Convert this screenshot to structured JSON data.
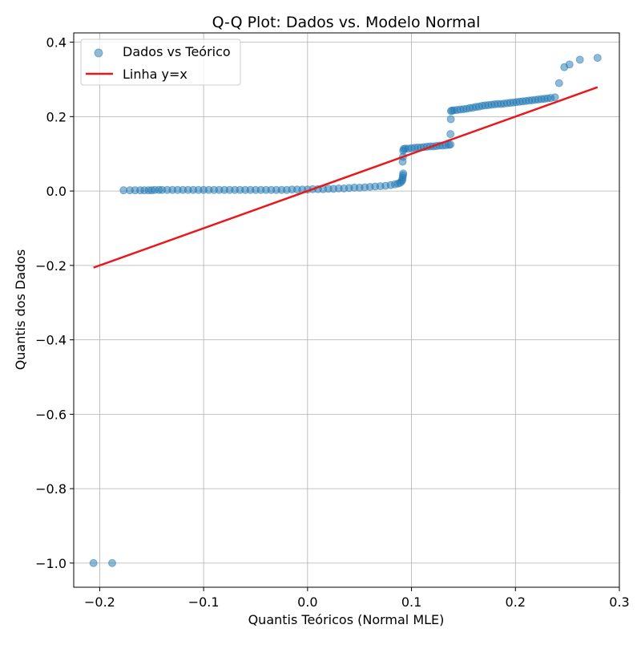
{
  "chart_data": {
    "type": "scatter",
    "title": "Q-Q Plot: Dados vs. Modelo Normal",
    "xlabel": "Quantis Teóricos (Normal MLE)",
    "ylabel": "Quantis dos Dados",
    "xlim": [
      -0.225,
      0.3
    ],
    "ylim": [
      -1.065,
      0.425
    ],
    "xticks": [
      -0.2,
      -0.1,
      0.0,
      0.1,
      0.2,
      0.3
    ],
    "xtick_labels": [
      "−0.2",
      "−0.1",
      "0.0",
      "0.1",
      "0.2",
      "0.3"
    ],
    "yticks": [
      -1.0,
      -0.8,
      -0.6,
      -0.4,
      -0.2,
      0.0,
      0.2,
      0.4
    ],
    "ytick_labels": [
      "−1.0",
      "−0.8",
      "−0.6",
      "−0.4",
      "−0.2",
      "0.0",
      "0.2",
      "0.4"
    ],
    "grid": true,
    "legend_position": "top-left",
    "colors": {
      "scatter": "#1f77b4",
      "line": "#e8191c",
      "grid": "#b0b0b0",
      "axes": "#000000"
    },
    "series": [
      {
        "name": "Dados vs Teórico",
        "kind": "scatter",
        "points": [
          [
            -0.206,
            -1.0
          ],
          [
            -0.188,
            -1.0
          ],
          [
            -0.177,
            0.002
          ],
          [
            -0.171,
            0.002
          ],
          [
            -0.166,
            0.002
          ],
          [
            -0.161,
            0.002
          ],
          [
            -0.157,
            0.002
          ],
          [
            -0.153,
            0.002
          ],
          [
            -0.15,
            0.002
          ],
          [
            -0.147,
            0.003
          ],
          [
            -0.143,
            0.003
          ],
          [
            -0.14,
            0.003
          ],
          [
            -0.135,
            0.003
          ],
          [
            -0.13,
            0.003
          ],
          [
            -0.125,
            0.003
          ],
          [
            -0.12,
            0.003
          ],
          [
            -0.115,
            0.003
          ],
          [
            -0.11,
            0.003
          ],
          [
            -0.105,
            0.003
          ],
          [
            -0.1,
            0.003
          ],
          [
            -0.095,
            0.003
          ],
          [
            -0.09,
            0.003
          ],
          [
            -0.085,
            0.003
          ],
          [
            -0.08,
            0.003
          ],
          [
            -0.075,
            0.003
          ],
          [
            -0.07,
            0.003
          ],
          [
            -0.065,
            0.003
          ],
          [
            -0.06,
            0.003
          ],
          [
            -0.055,
            0.003
          ],
          [
            -0.05,
            0.003
          ],
          [
            -0.045,
            0.003
          ],
          [
            -0.04,
            0.003
          ],
          [
            -0.035,
            0.003
          ],
          [
            -0.03,
            0.003
          ],
          [
            -0.025,
            0.003
          ],
          [
            -0.02,
            0.003
          ],
          [
            -0.015,
            0.004
          ],
          [
            -0.01,
            0.004
          ],
          [
            -0.005,
            0.004
          ],
          [
            0.0,
            0.004
          ],
          [
            0.005,
            0.005
          ],
          [
            0.01,
            0.005
          ],
          [
            0.015,
            0.005
          ],
          [
            0.02,
            0.006
          ],
          [
            0.025,
            0.006
          ],
          [
            0.03,
            0.007
          ],
          [
            0.035,
            0.007
          ],
          [
            0.04,
            0.008
          ],
          [
            0.045,
            0.009
          ],
          [
            0.05,
            0.009
          ],
          [
            0.055,
            0.01
          ],
          [
            0.06,
            0.011
          ],
          [
            0.065,
            0.012
          ],
          [
            0.07,
            0.013
          ],
          [
            0.075,
            0.014
          ],
          [
            0.08,
            0.016
          ],
          [
            0.084,
            0.018
          ],
          [
            0.087,
            0.02
          ],
          [
            0.089,
            0.022
          ],
          [
            0.0905,
            0.026
          ],
          [
            0.0912,
            0.03
          ],
          [
            0.0915,
            0.036
          ],
          [
            0.0918,
            0.042
          ],
          [
            0.092,
            0.047
          ],
          [
            0.0915,
            0.079
          ],
          [
            0.0918,
            0.092
          ],
          [
            0.092,
            0.108
          ],
          [
            0.0925,
            0.113
          ],
          [
            0.094,
            0.114
          ],
          [
            0.097,
            0.114
          ],
          [
            0.1,
            0.115
          ],
          [
            0.103,
            0.116
          ],
          [
            0.106,
            0.117
          ],
          [
            0.109,
            0.117
          ],
          [
            0.112,
            0.118
          ],
          [
            0.115,
            0.119
          ],
          [
            0.118,
            0.12
          ],
          [
            0.121,
            0.12
          ],
          [
            0.124,
            0.121
          ],
          [
            0.127,
            0.122
          ],
          [
            0.13,
            0.122
          ],
          [
            0.133,
            0.123
          ],
          [
            0.136,
            0.124
          ],
          [
            0.1375,
            0.125
          ],
          [
            0.1375,
            0.153
          ],
          [
            0.1378,
            0.193
          ],
          [
            0.138,
            0.215
          ],
          [
            0.139,
            0.216
          ],
          [
            0.141,
            0.217
          ],
          [
            0.144,
            0.218
          ],
          [
            0.147,
            0.219
          ],
          [
            0.15,
            0.22
          ],
          [
            0.153,
            0.221
          ],
          [
            0.156,
            0.223
          ],
          [
            0.159,
            0.224
          ],
          [
            0.162,
            0.226
          ],
          [
            0.165,
            0.227
          ],
          [
            0.168,
            0.229
          ],
          [
            0.171,
            0.23
          ],
          [
            0.174,
            0.231
          ],
          [
            0.177,
            0.232
          ],
          [
            0.18,
            0.233
          ],
          [
            0.183,
            0.234
          ],
          [
            0.186,
            0.234
          ],
          [
            0.189,
            0.235
          ],
          [
            0.192,
            0.236
          ],
          [
            0.195,
            0.237
          ],
          [
            0.198,
            0.238
          ],
          [
            0.201,
            0.239
          ],
          [
            0.204,
            0.24
          ],
          [
            0.207,
            0.241
          ],
          [
            0.21,
            0.242
          ],
          [
            0.213,
            0.243
          ],
          [
            0.216,
            0.244
          ],
          [
            0.219,
            0.245
          ],
          [
            0.222,
            0.246
          ],
          [
            0.225,
            0.247
          ],
          [
            0.228,
            0.248
          ],
          [
            0.231,
            0.249
          ],
          [
            0.234,
            0.25
          ],
          [
            0.238,
            0.252
          ],
          [
            0.242,
            0.29
          ],
          [
            0.247,
            0.333
          ],
          [
            0.252,
            0.34
          ],
          [
            0.262,
            0.353
          ],
          [
            0.279,
            0.358
          ]
        ]
      },
      {
        "name": "Linha y=x",
        "kind": "line",
        "points": [
          [
            -0.206,
            -0.206
          ],
          [
            0.279,
            0.279
          ]
        ]
      }
    ]
  }
}
